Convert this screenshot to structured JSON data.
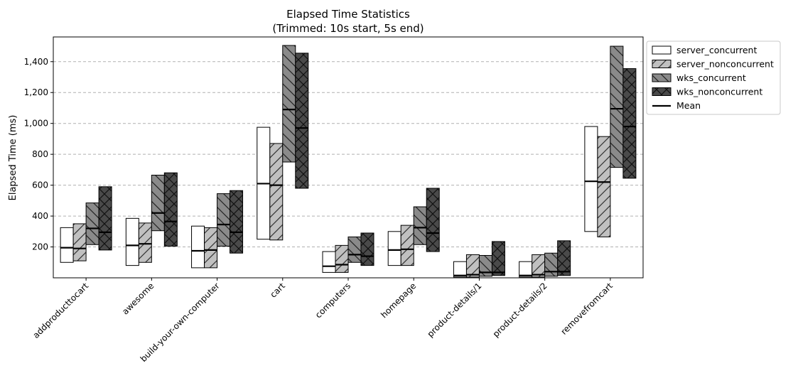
{
  "chart_data": {
    "type": "box-range",
    "title": "Elapsed Time Statistics",
    "subtitle": "(Trimmed: 10s start, 5s end)",
    "xlabel": "",
    "ylabel": "Elapsed Time (ms)",
    "ylim": [
      0,
      1560
    ],
    "yticks": [
      200,
      400,
      600,
      800,
      1000,
      1200,
      1400
    ],
    "ytick_labels": [
      "200",
      "400",
      "600",
      "800",
      "1,000",
      "1,200",
      "1,400"
    ],
    "grid": "y-dashed",
    "legend_position": "outside-right-top",
    "categories": [
      "addproducttocart",
      "awesome",
      "build-your-own-computer",
      "cart",
      "computers",
      "homepage",
      "product-details/1",
      "product-details/2",
      "removefromcart"
    ],
    "series": [
      {
        "name": "server_concurrent",
        "fill": "#ffffff",
        "hatch": "none",
        "low": [
          100,
          80,
          65,
          250,
          35,
          80,
          5,
          5,
          300
        ],
        "high": [
          325,
          385,
          335,
          975,
          170,
          300,
          105,
          105,
          980
        ],
        "mean": [
          195,
          210,
          175,
          610,
          75,
          180,
          15,
          15,
          625
        ]
      },
      {
        "name": "server_nonconcurrent",
        "fill": "#c0c0c0",
        "hatch": "diagonal",
        "low": [
          110,
          100,
          65,
          245,
          35,
          80,
          5,
          5,
          265
        ],
        "high": [
          350,
          355,
          325,
          870,
          210,
          340,
          150,
          150,
          915
        ],
        "mean": [
          190,
          220,
          180,
          600,
          85,
          185,
          20,
          20,
          620
        ]
      },
      {
        "name": "wks_concurrent",
        "fill": "#8a8a8a",
        "hatch": "back-diagonal",
        "low": [
          215,
          305,
          205,
          750,
          100,
          215,
          10,
          10,
          715
        ],
        "high": [
          485,
          665,
          545,
          1505,
          265,
          460,
          145,
          160,
          1500
        ],
        "mean": [
          320,
          420,
          345,
          1090,
          150,
          325,
          35,
          40,
          1095
        ]
      },
      {
        "name": "wks_nonconcurrent",
        "fill": "#4a4a4a",
        "hatch": "cross",
        "low": [
          180,
          205,
          160,
          580,
          80,
          170,
          15,
          15,
          645
        ],
        "high": [
          590,
          680,
          565,
          1455,
          290,
          580,
          235,
          240,
          1355
        ],
        "mean": [
          295,
          365,
          295,
          970,
          140,
          290,
          35,
          40,
          980
        ]
      }
    ],
    "legend_entries": [
      "server_concurrent",
      "server_nonconcurrent",
      "wks_concurrent",
      "wks_nonconcurrent",
      "Mean"
    ],
    "colors": {
      "frame": "#000000",
      "grid": "#b0b0b0",
      "mean_line": "#000000"
    }
  }
}
